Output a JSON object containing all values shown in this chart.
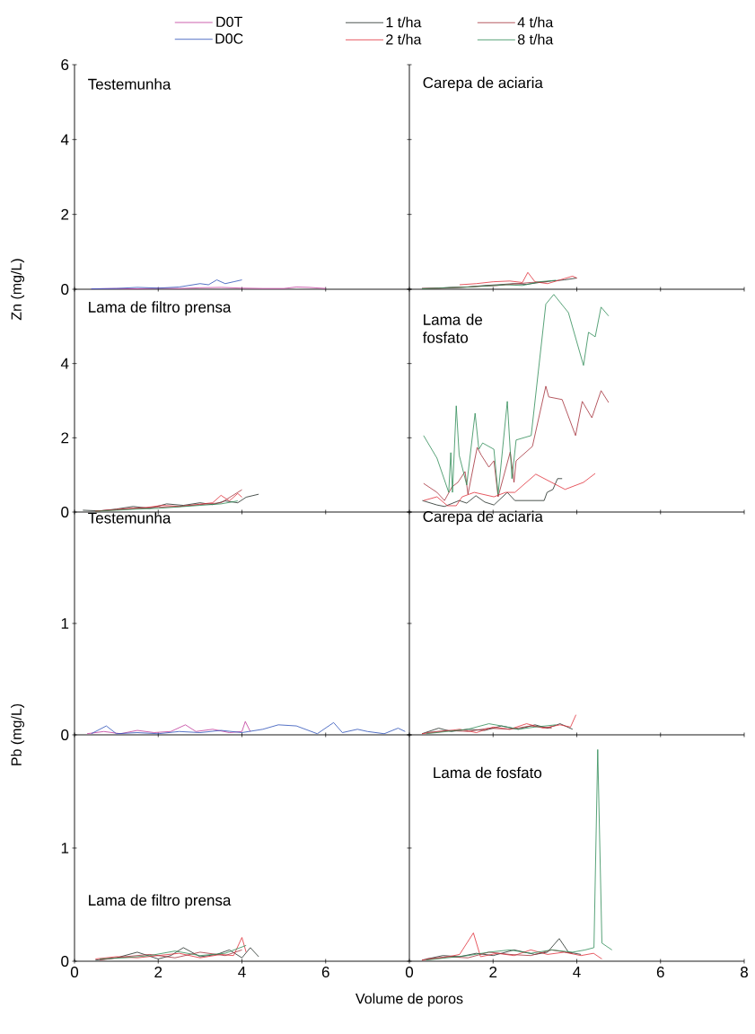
{
  "chart_data": [
    {
      "type": "line",
      "title": "Testemunha",
      "ylabel": "Zn (mg/L)",
      "xlim": [
        0,
        8
      ],
      "ylim": [
        0,
        6
      ],
      "xticks": [
        0,
        2,
        4,
        6
      ],
      "yticks": [
        0,
        2,
        4,
        6
      ],
      "tick_labels": "y",
      "legend": "top",
      "series": [
        {
          "name": "D0T",
          "color": "#c0399a",
          "x": [
            0.4,
            1.0,
            1.5,
            2.0,
            2.5,
            3.0,
            3.5,
            4.0,
            4.5,
            5.0,
            5.3,
            5.6,
            6.0
          ],
          "values": [
            0.01,
            0.02,
            0.01,
            0.03,
            0.02,
            0.04,
            0.05,
            0.03,
            0.02,
            0.02,
            0.06,
            0.05,
            0.02
          ]
        },
        {
          "name": "D0C",
          "color": "#2b4fb8",
          "x": [
            0.4,
            1.0,
            1.5,
            2.0,
            2.5,
            3.0,
            3.2,
            3.4,
            3.6,
            3.8,
            4.0
          ],
          "values": [
            0.01,
            0.02,
            0.05,
            0.03,
            0.06,
            0.15,
            0.12,
            0.25,
            0.15,
            0.2,
            0.25
          ]
        }
      ]
    },
    {
      "type": "line",
      "title": "Carepa de aciaria",
      "xlim": [
        0,
        8
      ],
      "ylim": [
        0,
        6
      ],
      "xticks": [
        0,
        2,
        4,
        6,
        8
      ],
      "yticks": [
        0,
        2,
        4,
        6
      ],
      "tick_labels": false,
      "legend": "top",
      "series": [
        {
          "name": "1 t/ha",
          "color": "#1f2a24",
          "x": [
            0.3,
            0.7,
            1.0,
            1.4,
            1.8,
            2.1,
            2.5,
            2.8,
            3.1,
            3.4,
            3.7,
            4.0
          ],
          "values": [
            0.02,
            0.03,
            0.05,
            0.06,
            0.1,
            0.12,
            0.15,
            0.13,
            0.18,
            0.22,
            0.25,
            0.3
          ]
        },
        {
          "name": "2 t/ha",
          "color": "#e0303a",
          "x": [
            1.2,
            1.6,
            2.0,
            2.4,
            2.7,
            2.83,
            3.0,
            3.3,
            3.6,
            3.9,
            4.0
          ],
          "values": [
            0.12,
            0.15,
            0.2,
            0.22,
            0.18,
            0.45,
            0.2,
            0.15,
            0.25,
            0.35,
            0.3
          ]
        },
        {
          "name": "4 t/ha",
          "color": "#a3303a",
          "x": [
            0.3,
            0.8,
            1.2,
            1.7,
            2.1,
            2.5,
            2.9,
            3.3
          ],
          "values": [
            0.02,
            0.03,
            0.05,
            0.08,
            0.1,
            0.14,
            0.18,
            0.2
          ]
        },
        {
          "name": "8 t/ha",
          "color": "#2e8b57",
          "x": [
            0.3,
            0.9,
            1.4,
            1.9,
            2.3,
            2.7,
            3.1,
            3.5
          ],
          "values": [
            0.01,
            0.04,
            0.06,
            0.09,
            0.12,
            0.1,
            0.2,
            0.24
          ]
        }
      ]
    },
    {
      "type": "line",
      "title": "Lama de filtro prensa",
      "xlim": [
        0,
        8
      ],
      "ylim": [
        0,
        6
      ],
      "xticks": [
        0,
        2,
        4,
        6
      ],
      "yticks": [
        0,
        2,
        4
      ],
      "tick_labels": "y",
      "series": [
        {
          "color": "#1f2a24",
          "x": [
            0.2,
            0.6,
            1.0,
            1.4,
            1.8,
            2.2,
            2.6,
            3.0,
            3.3,
            3.6,
            3.9,
            4.1,
            4.4
          ],
          "values": [
            0.05,
            0.03,
            0.08,
            0.15,
            0.1,
            0.22,
            0.18,
            0.25,
            0.2,
            0.3,
            0.25,
            0.4,
            0.48
          ]
        },
        {
          "color": "#e0303a",
          "x": [
            0.5,
            0.9,
            1.3,
            1.7,
            2.1,
            2.5,
            2.9,
            3.3,
            3.5,
            3.7,
            3.9,
            4.0
          ],
          "values": [
            0.02,
            0.06,
            0.1,
            0.12,
            0.18,
            0.15,
            0.2,
            0.25,
            0.45,
            0.3,
            0.5,
            0.4
          ]
        },
        {
          "color": "#a3303a",
          "x": [
            0.5,
            1.0,
            1.5,
            2.0,
            2.5,
            3.0,
            3.5,
            4.0
          ],
          "values": [
            0.03,
            0.06,
            0.1,
            0.13,
            0.15,
            0.2,
            0.25,
            0.6
          ]
        },
        {
          "color": "#2e8b57",
          "x": [
            0.5,
            1.0,
            1.5,
            2.0,
            2.5,
            3.0,
            3.5,
            3.9
          ],
          "values": [
            0.02,
            0.05,
            0.08,
            0.1,
            0.14,
            0.18,
            0.22,
            0.3
          ]
        }
      ]
    },
    {
      "type": "line",
      "title": "Lama de fosfato",
      "xlim": [
        0,
        8
      ],
      "ylim": [
        0,
        6
      ],
      "xticks": [
        0,
        2,
        4,
        6,
        8
      ],
      "yticks": [
        0,
        2,
        4,
        6
      ],
      "tick_labels": false,
      "series": [
        {
          "color": "#1f2a24",
          "x": [
            0.31,
            0.66,
            0.84,
            1.19,
            1.37,
            1.59,
            1.8,
            2.02,
            2.34,
            2.52,
            3.22,
            3.29,
            3.43,
            3.54,
            3.65
          ],
          "values": [
            0.31,
            0.19,
            0.15,
            0.31,
            0.24,
            0.44,
            0.27,
            0.19,
            0.53,
            0.31,
            0.31,
            0.53,
            0.61,
            0.9,
            0.9
          ]
        },
        {
          "color": "#e0303a",
          "x": [
            0.34,
            0.66,
            0.91,
            1.12,
            1.26,
            1.55,
            2.02,
            2.3,
            2.52,
            3.02,
            3.72,
            4.16,
            4.44
          ],
          "values": [
            0.31,
            0.41,
            0.17,
            0.17,
            0.41,
            0.53,
            0.41,
            0.53,
            0.53,
            1.02,
            0.61,
            0.8,
            1.04
          ]
        },
        {
          "color": "#a3303a",
          "x": [
            0.34,
            0.66,
            0.84,
            1.02,
            1.16,
            1.33,
            1.4,
            1.62,
            1.72,
            1.9,
            2.02,
            2.12,
            2.41,
            2.5,
            2.55,
            2.94,
            3.26,
            3.33,
            3.65,
            3.97,
            4.13,
            4.36,
            4.58,
            4.76
          ],
          "values": [
            0.77,
            0.53,
            0.31,
            0.68,
            0.8,
            1.09,
            0.48,
            1.74,
            1.53,
            1.21,
            1.38,
            0.41,
            1.62,
            0.8,
            1.38,
            1.77,
            3.39,
            3.1,
            3.03,
            2.06,
            2.98,
            2.54,
            3.27,
            2.95
          ]
        },
        {
          "color": "#2e8b57",
          "x": [
            0.34,
            0.66,
            0.94,
            0.99,
            1.03,
            1.12,
            1.19,
            1.37,
            1.57,
            1.66,
            1.75,
            2.02,
            2.12,
            2.34,
            2.45,
            2.55,
            2.91,
            3.26,
            3.45,
            3.8,
            4.16,
            4.28,
            4.44,
            4.58,
            4.76
          ],
          "values": [
            2.06,
            1.45,
            0.53,
            1.6,
            0.53,
            2.86,
            1.53,
            0.73,
            2.66,
            1.69,
            1.86,
            1.69,
            0.48,
            2.98,
            0.9,
            1.94,
            2.06,
            5.6,
            5.86,
            5.37,
            3.95,
            4.84,
            4.72,
            5.52,
            5.28
          ]
        }
      ]
    },
    {
      "type": "line",
      "title": "Testemunha",
      "ylabel": "Pb (mg/L)",
      "xlim": [
        0,
        8
      ],
      "ylim": [
        0,
        2
      ],
      "xticks": [
        0,
        2,
        4,
        6
      ],
      "yticks": [
        0,
        1
      ],
      "tick_labels": "y",
      "series": [
        {
          "color": "#c0399a",
          "x": [
            0.3,
            0.7,
            1.1,
            1.5,
            1.9,
            2.3,
            2.65,
            2.9,
            3.3,
            3.7,
            4.0,
            4.08,
            4.2
          ],
          "values": [
            0.01,
            0.03,
            0.01,
            0.04,
            0.02,
            0.03,
            0.09,
            0.03,
            0.05,
            0.02,
            0.03,
            0.12,
            0.03
          ]
        },
        {
          "color": "#2b4fb8",
          "x": [
            0.4,
            0.76,
            1.0,
            1.5,
            2.0,
            2.5,
            3.0,
            3.5,
            4.0,
            4.5,
            4.87,
            5.3,
            5.8,
            6.19,
            6.4,
            6.76,
            7.0,
            7.4,
            7.73,
            7.9
          ],
          "values": [
            0.01,
            0.08,
            0.01,
            0.02,
            0.01,
            0.03,
            0.02,
            0.04,
            0.02,
            0.05,
            0.09,
            0.08,
            0.01,
            0.11,
            0.02,
            0.05,
            0.03,
            0.01,
            0.06,
            0.03
          ]
        }
      ]
    },
    {
      "type": "line",
      "title": "Carepa de aciaria",
      "xlim": [
        0,
        8
      ],
      "ylim": [
        0,
        2
      ],
      "xticks": [
        0,
        2,
        4,
        6,
        8
      ],
      "yticks": [
        0,
        1,
        2
      ],
      "tick_labels": false,
      "series": [
        {
          "color": "#1f2a24",
          "x": [
            0.3,
            0.7,
            1.0,
            1.4,
            1.8,
            2.2,
            2.6,
            3.0,
            3.3,
            3.6,
            3.9
          ],
          "values": [
            0.01,
            0.06,
            0.03,
            0.05,
            0.04,
            0.08,
            0.05,
            0.09,
            0.06,
            0.1,
            0.05
          ]
        },
        {
          "color": "#e0303a",
          "x": [
            0.3,
            0.8,
            1.2,
            1.6,
            2.0,
            2.4,
            2.8,
            3.2,
            3.6,
            3.85,
            3.98
          ],
          "values": [
            0.01,
            0.03,
            0.05,
            0.02,
            0.07,
            0.05,
            0.1,
            0.06,
            0.09,
            0.07,
            0.18
          ]
        },
        {
          "color": "#a3303a",
          "x": [
            0.4,
            0.9,
            1.4,
            1.9,
            2.4,
            2.9,
            3.4
          ],
          "values": [
            0.02,
            0.04,
            0.03,
            0.06,
            0.05,
            0.08,
            0.06
          ]
        },
        {
          "color": "#2e8b57",
          "x": [
            0.4,
            0.9,
            1.4,
            1.9,
            2.2,
            2.6,
            3.0,
            3.5
          ],
          "values": [
            0.01,
            0.03,
            0.05,
            0.1,
            0.08,
            0.05,
            0.07,
            0.09
          ]
        }
      ]
    },
    {
      "type": "line",
      "title": "Lama de filtro prensa",
      "xlabel": "Volume de poros",
      "xlim": [
        0,
        8
      ],
      "ylim": [
        0,
        2
      ],
      "xticks": [
        0,
        2,
        4,
        6
      ],
      "yticks": [
        0,
        1
      ],
      "series": [
        {
          "color": "#1f2a24",
          "x": [
            0.5,
            1.0,
            1.5,
            2.0,
            2.3,
            2.6,
            3.0,
            3.4,
            3.7,
            4.0,
            4.2,
            4.4
          ],
          "values": [
            0.01,
            0.03,
            0.08,
            0.02,
            0.05,
            0.12,
            0.04,
            0.06,
            0.1,
            0.03,
            0.12,
            0.04
          ]
        },
        {
          "color": "#e0303a",
          "x": [
            0.5,
            1.0,
            1.5,
            2.0,
            2.5,
            3.0,
            3.5,
            3.8,
            4.0,
            4.1
          ],
          "values": [
            0.02,
            0.04,
            0.03,
            0.05,
            0.07,
            0.03,
            0.06,
            0.05,
            0.21,
            0.08
          ]
        },
        {
          "color": "#a3303a",
          "x": [
            0.6,
            1.2,
            1.8,
            2.4,
            3.0,
            3.6,
            4.0
          ],
          "values": [
            0.01,
            0.04,
            0.06,
            0.03,
            0.08,
            0.05,
            0.1
          ]
        },
        {
          "color": "#2e8b57",
          "x": [
            0.6,
            1.2,
            1.8,
            2.4,
            3.0,
            3.6,
            4.1
          ],
          "values": [
            0.02,
            0.03,
            0.05,
            0.09,
            0.05,
            0.07,
            0.14
          ]
        }
      ]
    },
    {
      "type": "line",
      "title": "Lama de fosfato",
      "xlim": [
        0,
        8
      ],
      "ylim": [
        0,
        2
      ],
      "xticks": [
        0,
        2,
        4,
        6,
        8
      ],
      "yticks": [
        0,
        1,
        2
      ],
      "tick_labels": "x",
      "series": [
        {
          "color": "#1f2a24",
          "x": [
            0.3,
            0.8,
            1.2,
            1.6,
            2.0,
            2.5,
            3.0,
            3.3,
            3.58,
            3.8,
            4.1
          ],
          "values": [
            0.01,
            0.05,
            0.04,
            0.07,
            0.05,
            0.1,
            0.06,
            0.08,
            0.2,
            0.08,
            0.06
          ]
        },
        {
          "color": "#e0303a",
          "x": [
            0.3,
            0.8,
            1.2,
            1.53,
            1.7,
            2.1,
            2.5,
            2.9,
            3.3,
            3.7,
            4.1,
            4.4,
            4.6
          ],
          "values": [
            0.01,
            0.03,
            0.06,
            0.25,
            0.04,
            0.07,
            0.05,
            0.1,
            0.06,
            0.08,
            0.05,
            0.07,
            0.02
          ]
        },
        {
          "color": "#a3303a",
          "x": [
            0.4,
            0.9,
            1.4,
            1.9,
            2.4,
            2.9,
            3.4,
            3.9
          ],
          "values": [
            0.02,
            0.04,
            0.03,
            0.08,
            0.06,
            0.05,
            0.1,
            0.07
          ]
        },
        {
          "color": "#2e8b57",
          "x": [
            0.4,
            0.9,
            1.4,
            1.9,
            2.4,
            2.9,
            3.4,
            3.9,
            4.2,
            4.41,
            4.5,
            4.6,
            4.84
          ],
          "values": [
            0.01,
            0.03,
            0.05,
            0.08,
            0.1,
            0.07,
            0.1,
            0.08,
            0.1,
            0.12,
            1.87,
            0.16,
            0.1
          ]
        }
      ]
    }
  ]
}
